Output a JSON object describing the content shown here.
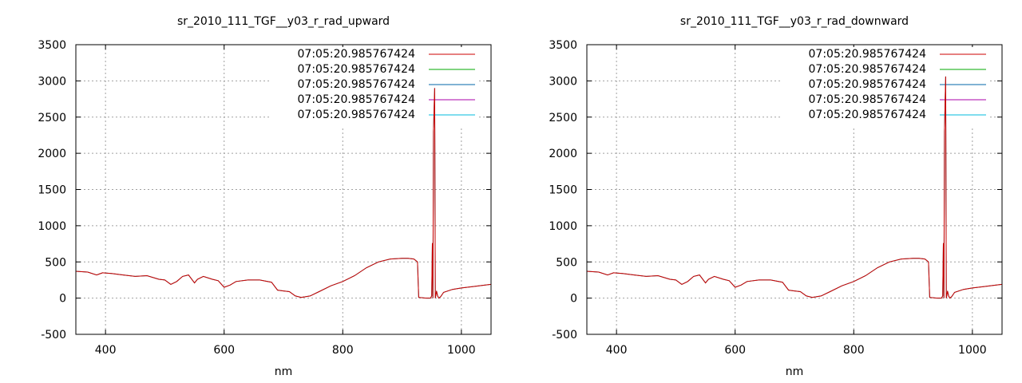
{
  "chart_data": [
    {
      "type": "line",
      "title": "sr_2010_111_TGF__y03_r_rad_upward",
      "xlabel": "nm",
      "ylabel": "",
      "xlim": [
        350,
        1050
      ],
      "ylim": [
        -500,
        3500
      ],
      "xticks": [
        "400",
        "600",
        "800",
        "1000"
      ],
      "yticks": [
        "-500",
        "0",
        "500",
        "1000",
        "1500",
        "2000",
        "2500",
        "3000",
        "3500"
      ],
      "grid": true,
      "legend_position": "top-right",
      "series": [
        {
          "name": "07:05:20.985767424",
          "color": "#cc0000"
        },
        {
          "name": "07:05:20.985767424",
          "color": "#00aa00"
        },
        {
          "name": "07:05:20.985767424",
          "color": "#0066aa"
        },
        {
          "name": "07:05:20.985767424",
          "color": "#aa00aa"
        },
        {
          "name": "07:05:20.985767424",
          "color": "#00bbdd"
        }
      ],
      "x": [
        350,
        370,
        385,
        395,
        410,
        430,
        450,
        470,
        490,
        500,
        510,
        520,
        530,
        540,
        550,
        555,
        565,
        580,
        590,
        600,
        610,
        620,
        640,
        660,
        680,
        690,
        700,
        710,
        720,
        730,
        745,
        760,
        780,
        800,
        820,
        840,
        860,
        880,
        900,
        910,
        920,
        926,
        928,
        940,
        945,
        948,
        950,
        951,
        952,
        953,
        955,
        956,
        957,
        958,
        960,
        962,
        965,
        970,
        985,
        1000,
        1020,
        1040,
        1050
      ],
      "values": [
        370,
        360,
        320,
        350,
        340,
        320,
        300,
        310,
        260,
        250,
        190,
        230,
        300,
        320,
        210,
        260,
        300,
        260,
        240,
        150,
        180,
        230,
        250,
        250,
        220,
        110,
        100,
        90,
        30,
        10,
        30,
        90,
        170,
        230,
        310,
        420,
        500,
        540,
        550,
        550,
        540,
        500,
        10,
        0,
        0,
        0,
        30,
        760,
        0,
        2300,
        2900,
        0,
        40,
        100,
        30,
        0,
        20,
        80,
        120,
        140,
        160,
        180,
        190
      ]
    },
    {
      "type": "line",
      "title": "sr_2010_111_TGF__y03_r_rad_downward",
      "xlabel": "nm",
      "ylabel": "",
      "xlim": [
        350,
        1050
      ],
      "ylim": [
        -500,
        3500
      ],
      "xticks": [
        "400",
        "600",
        "800",
        "1000"
      ],
      "yticks": [
        "-500",
        "0",
        "500",
        "1000",
        "1500",
        "2000",
        "2500",
        "3000",
        "3500"
      ],
      "grid": true,
      "legend_position": "top-right",
      "series": [
        {
          "name": "07:05:20.985767424",
          "color": "#cc0000"
        },
        {
          "name": "07:05:20.985767424",
          "color": "#00aa00"
        },
        {
          "name": "07:05:20.985767424",
          "color": "#0066aa"
        },
        {
          "name": "07:05:20.985767424",
          "color": "#aa00aa"
        },
        {
          "name": "07:05:20.985767424",
          "color": "#00bbdd"
        }
      ],
      "x": [
        350,
        370,
        385,
        395,
        410,
        430,
        450,
        470,
        490,
        500,
        510,
        520,
        530,
        540,
        550,
        555,
        565,
        580,
        590,
        600,
        610,
        620,
        640,
        660,
        680,
        690,
        700,
        710,
        720,
        730,
        745,
        760,
        780,
        800,
        820,
        840,
        860,
        880,
        900,
        910,
        920,
        926,
        928,
        940,
        945,
        948,
        950,
        951,
        952,
        953,
        955,
        956,
        957,
        958,
        960,
        962,
        965,
        970,
        985,
        1000,
        1020,
        1040,
        1050
      ],
      "values": [
        370,
        360,
        320,
        350,
        340,
        320,
        300,
        310,
        260,
        250,
        190,
        230,
        300,
        320,
        210,
        260,
        300,
        260,
        240,
        150,
        180,
        230,
        250,
        250,
        220,
        110,
        100,
        90,
        30,
        10,
        30,
        90,
        170,
        230,
        310,
        420,
        500,
        540,
        550,
        550,
        540,
        500,
        10,
        0,
        0,
        0,
        30,
        760,
        0,
        2300,
        3060,
        0,
        40,
        100,
        30,
        0,
        20,
        80,
        120,
        140,
        160,
        180,
        190
      ]
    }
  ]
}
